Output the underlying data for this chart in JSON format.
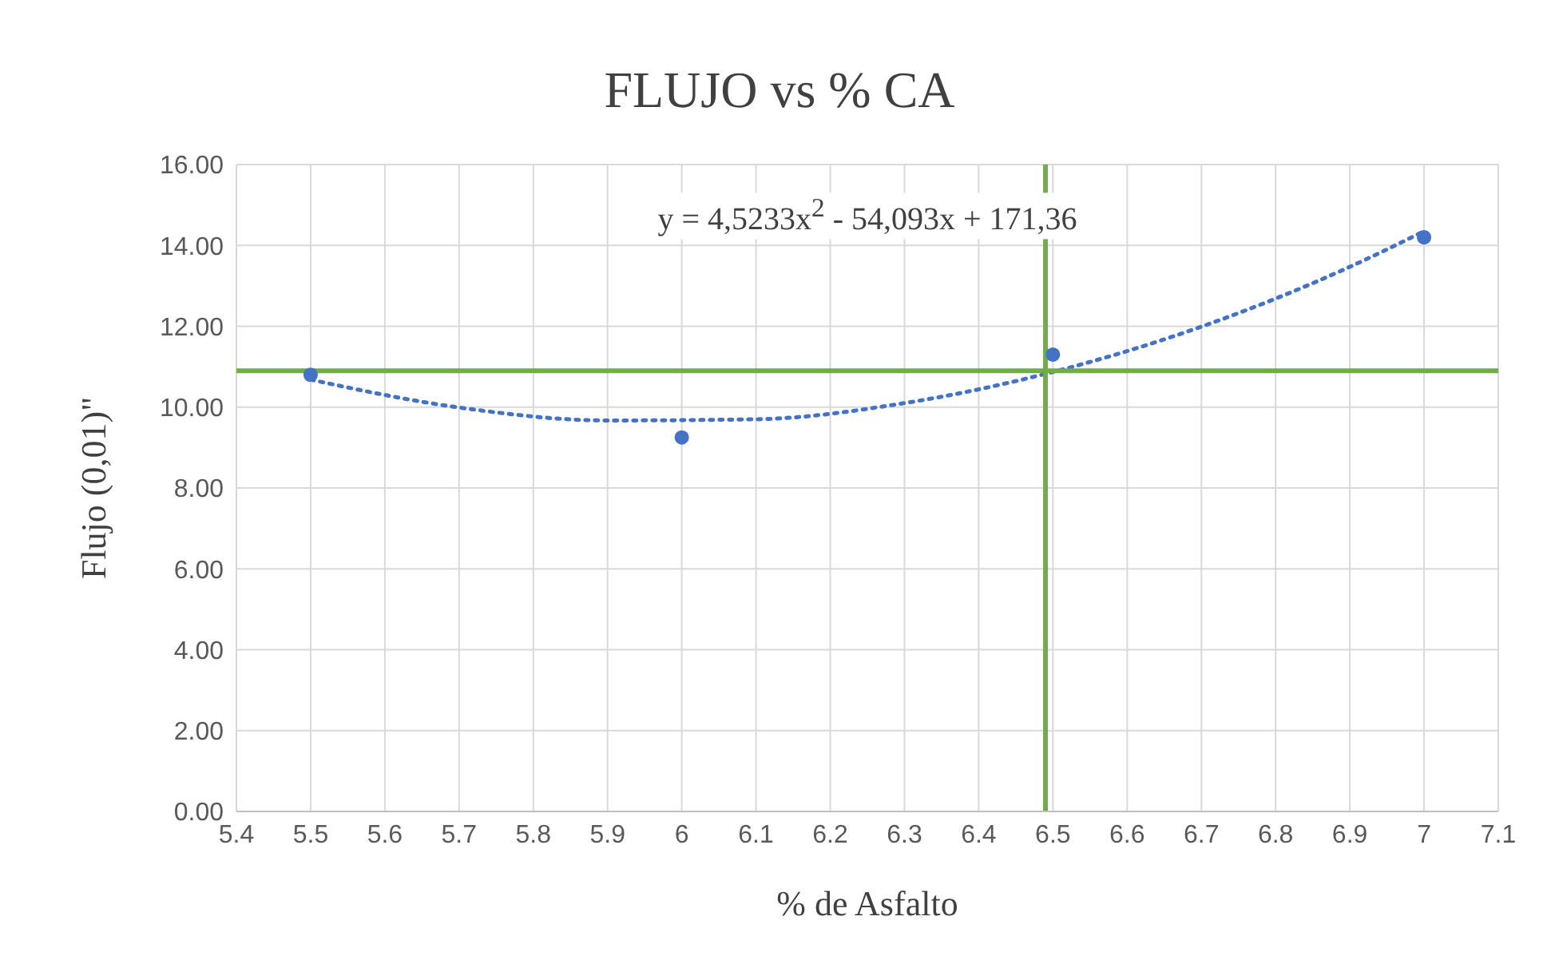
{
  "chart_data": {
    "type": "scatter",
    "title": "FLUJO vs % CA",
    "xlabel": "% de Asfalto",
    "ylabel": "Flujo (0,01)\"",
    "series": [
      {
        "type": "scatter",
        "color": "#4472c4",
        "x": [
          5.5,
          6,
          6.5,
          7
        ],
        "values": [
          10.8,
          9.25,
          11.3,
          14.2
        ],
        "marker": "circle"
      },
      {
        "type": "line",
        "color": "#4472c4",
        "line_style": "dotted",
        "marker": "none",
        "x": [
          5.5,
          5.7,
          5.9,
          6.1,
          6.3,
          6.5,
          6.7,
          6.9,
          7
        ],
        "values": [
          10.68,
          9.99,
          9.67,
          9.7,
          10.1,
          10.87,
          11.99,
          13.47,
          14.35
        ]
      }
    ],
    "annotations": [
      "y = 4,5233x$^{2}$ - 54,093x + 171,36"
    ],
    "ref_lines": [
      {
        "axis": "y",
        "value": 10.9,
        "color": "#70ad47"
      },
      {
        "axis": "x",
        "value": 6.49,
        "color": "#70ad47"
      }
    ],
    "xlim": [
      5.4,
      7.1
    ],
    "xticks": [
      5.4,
      5.5,
      5.6,
      5.7,
      5.8,
      5.9,
      6,
      6.1,
      6.2,
      6.3,
      6.4,
      6.5,
      6.6,
      6.7,
      6.8,
      6.9,
      7,
      7.1
    ],
    "ylim": [
      0,
      16
    ],
    "yticks": [
      {
        "value": 0,
        "label": "0.00"
      },
      {
        "value": 2,
        "label": "2.00"
      },
      {
        "value": 4,
        "label": "4.00"
      },
      {
        "value": 6,
        "label": "6.00"
      },
      {
        "value": 8,
        "label": "8.00"
      },
      {
        "value": 10,
        "label": "10.00"
      },
      {
        "value": 12,
        "label": "12.00"
      },
      {
        "value": 14,
        "label": "14.00"
      },
      {
        "value": 16,
        "label": "16.00"
      }
    ],
    "grid": true,
    "legend": false
  }
}
